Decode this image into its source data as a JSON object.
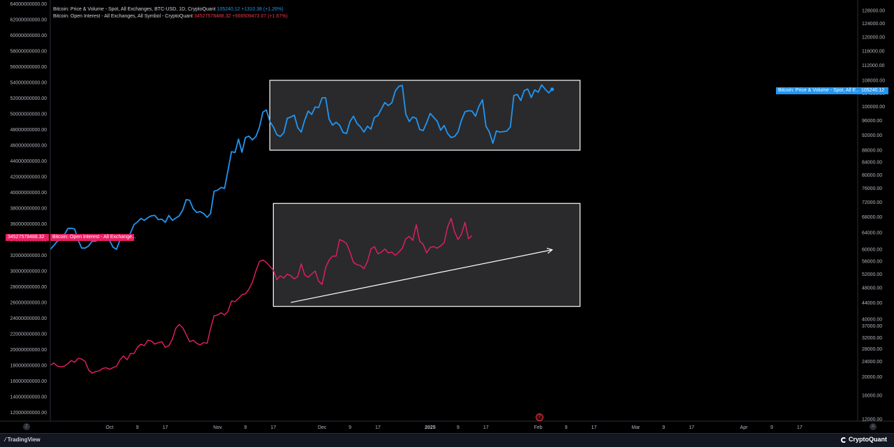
{
  "legend": {
    "btc_name": "Bitcoin: Price & Volume - Spot, All Exchanges, BTC-USD, 1D, CryptoQuant",
    "btc_value": "105240.12",
    "btc_change": "+1310.38 (+1.26%)",
    "oi_name": "Bitcoin: Open Interest - All Exchanges, All Symbol - CryptoQuant",
    "oi_value": "34527578488.32",
    "oi_change": "+566509473.07 (+1.67%)"
  },
  "tags": {
    "btc_label": "Bitcoin: Price & Volume - Spot, All E...",
    "btc_value": "105240.12",
    "oi_value": "34527578488.32",
    "oi_label": "Bitcoin: Open Interest - All Exchange..."
  },
  "bottom": {
    "tradingview": "TradingView",
    "cryptoquant": "CryptoQuant",
    "left_button": "Z",
    "right_button": "A",
    "marker": "?"
  },
  "colors": {
    "background": "#000000",
    "price_line": "#2196f3",
    "oi_line": "#e91e63",
    "box_fill": "#2a2a2c",
    "box_border": "#ffffff"
  },
  "chart_data": {
    "type": "line",
    "left_axis": {
      "ticks": [
        "64000000000.00",
        "62000000000.00",
        "60000000000.00",
        "58000000000.00",
        "56000000000.00",
        "54000000000.00",
        "52000000000.00",
        "50000000000.00",
        "48000000000.00",
        "46000000000.00",
        "44000000000.00",
        "42000000000.00",
        "40000000000.00",
        "38000000000.00",
        "36000000000.00",
        "34000000000.00",
        "32000000000.00",
        "30000000000.00",
        "28000000000.00",
        "26000000000.00",
        "24000000000.00",
        "22000000000.00",
        "20000000000.00",
        "18000000000.00",
        "16000000000.00",
        "14000000000.00",
        "12000000000.00"
      ],
      "ylim": [
        10900000000,
        64300000000
      ]
    },
    "right_axis": {
      "ticks": [
        "128000.00",
        "124000.00",
        "120000.00",
        "116000.00",
        "112000.00",
        "108000.00",
        "104000.00",
        "100000.00",
        "96000.00",
        "92000.00",
        "88000.00",
        "84000.00",
        "80000.00",
        "76000.00",
        "72000.00",
        "68000.00",
        "64000.00",
        "60000.00",
        "56000.00",
        "52000.00",
        "48000.00",
        "44000.00",
        "40000.00",
        "37000.00",
        "32000.00",
        "28000.00",
        "24000.00",
        "20000.00",
        "16000.00",
        "12000.00"
      ],
      "scale": "log"
    },
    "x_axis": {
      "ticks": [
        {
          "label": "Oct",
          "index": 17,
          "bold": false
        },
        {
          "label": "9",
          "index": 25,
          "bold": false
        },
        {
          "label": "17",
          "index": 33,
          "bold": false
        },
        {
          "label": "Nov",
          "index": 48,
          "bold": false
        },
        {
          "label": "9",
          "index": 56,
          "bold": false
        },
        {
          "label": "17",
          "index": 64,
          "bold": false
        },
        {
          "label": "Dec",
          "index": 78,
          "bold": false
        },
        {
          "label": "9",
          "index": 86,
          "bold": false
        },
        {
          "label": "17",
          "index": 94,
          "bold": false
        },
        {
          "label": "2025",
          "index": 109,
          "bold": true
        },
        {
          "label": "9",
          "index": 117,
          "bold": false
        },
        {
          "label": "17",
          "index": 125,
          "bold": false
        },
        {
          "label": "Feb",
          "index": 140,
          "bold": false
        },
        {
          "label": "9",
          "index": 148,
          "bold": false
        },
        {
          "label": "17",
          "index": 156,
          "bold": false
        },
        {
          "label": "Mar",
          "index": 168,
          "bold": false
        },
        {
          "label": "9",
          "index": 176,
          "bold": false
        },
        {
          "label": "17",
          "index": 184,
          "bold": false
        },
        {
          "label": "Apr",
          "index": 199,
          "bold": false
        },
        {
          "label": "9",
          "index": 207,
          "bold": false
        },
        {
          "label": "17",
          "index": 215,
          "bold": false
        }
      ]
    },
    "series": [
      {
        "name": "Bitcoin: Price & Volume - Spot, All Exchanges, BTC-USD, 1D, CryptoQuant",
        "axis": "right",
        "values": [
          60000,
          60900,
          61900,
          62300,
          63400,
          65000,
          65100,
          64900,
          62200,
          60300,
          60300,
          60800,
          61900,
          61900,
          62400,
          63600,
          63000,
          62100,
          60500,
          60000,
          62200,
          62700,
          62300,
          63900,
          66000,
          66700,
          67600,
          67100,
          67800,
          68300,
          68400,
          67300,
          67400,
          66600,
          68400,
          67100,
          67700,
          68300,
          69800,
          72700,
          72500,
          70200,
          69200,
          69400,
          68900,
          67900,
          68900,
          75100,
          75400,
          76200,
          75900,
          81500,
          87500,
          87200,
          90900,
          87300,
          91300,
          91700,
          90700,
          91600,
          94100,
          98400,
          99000,
          95700,
          94200,
          92100,
          91600,
          92600,
          96600,
          97000,
          97500,
          94000,
          92800,
          96100,
          98700,
          97700,
          99900,
          99700,
          102600,
          102600,
          96400,
          94700,
          95500,
          94700,
          92700,
          92400,
          95700,
          97200,
          95200,
          94200,
          92800,
          94400,
          93600,
          96900,
          97400,
          99300,
          101200,
          100300,
          101100,
          104700,
          106100,
          106400,
          97800,
          95700,
          97000,
          96600,
          93500,
          93200,
          95400,
          98000,
          96900,
          95800,
          93300,
          94600,
          92400,
          91300,
          91600,
          92800,
          96100,
          98500,
          98800,
          98700,
          97200,
          100100,
          102000,
          94400,
          92800,
          89800,
          93100,
          92800,
          92900,
          93100,
          94200,
          103300,
          103600,
          101800,
          104800,
          105300,
          102700,
          105000,
          104300,
          106600,
          105200,
          104100,
          105200
        ]
      },
      {
        "name": "Bitcoin: Open Interest - All Exchanges, All Symbol - CryptoQuant",
        "axis": "left",
        "values": [
          18000000000,
          18300000000,
          17900000000,
          17800000000,
          17900000000,
          18200000000,
          18600000000,
          18400000000,
          18900000000,
          18800000000,
          18500000000,
          17400000000,
          17000000000,
          17200000000,
          17300000000,
          17600000000,
          17700000000,
          17500000000,
          17700000000,
          17900000000,
          18700000000,
          19200000000,
          18700000000,
          19500000000,
          19500000000,
          20300000000,
          20700000000,
          20500000000,
          21200000000,
          21100000000,
          20700000000,
          20900000000,
          21000000000,
          20300000000,
          20500000000,
          21300000000,
          22700000000,
          23200000000,
          22800000000,
          21900000000,
          21000000000,
          21200000000,
          20800000000,
          20600000000,
          20900000000,
          20800000000,
          22700000000,
          24300000000,
          24400000000,
          24700000000,
          24400000000,
          24900000000,
          26200000000,
          26100000000,
          26500000000,
          27000000000,
          27100000000,
          27700000000,
          28600000000,
          30000000000,
          31200000000,
          31400000000,
          31100000000,
          30600000000,
          30100000000,
          28900000000,
          29400000000,
          29100000000,
          29600000000,
          29400000000,
          29000000000,
          29300000000,
          30900000000,
          29500000000,
          29200000000,
          29600000000,
          30000000000,
          28700000000,
          28300000000,
          30400000000,
          31400000000,
          31900000000,
          31900000000,
          34000000000,
          33800000000,
          33500000000,
          32400000000,
          31100000000,
          30800000000,
          30700000000,
          30300000000,
          31200000000,
          32800000000,
          33100000000,
          32200000000,
          32400000000,
          32800000000,
          32300000000,
          32400000000,
          32000000000,
          32400000000,
          32900000000,
          34100000000,
          34400000000,
          33900000000,
          35900000000,
          33800000000,
          33400000000,
          32300000000,
          33000000000,
          33100000000,
          32900000000,
          33200000000,
          33600000000,
          35600000000,
          36700000000,
          35000000000,
          34000000000,
          34700000000,
          36200000000,
          34100000000,
          34500000000
        ]
      }
    ],
    "annotations": {
      "price_box": {
        "index_start": 63,
        "index_end": 152,
        "value_start": 88000,
        "value_end": 108000,
        "axis": "right"
      },
      "oi_box": {
        "index_start": 64,
        "index_end": 152,
        "value_start": 25500000000,
        "value_end": 38600000000,
        "axis": "left"
      },
      "trend_arrow": {
        "index_start": 69,
        "index_end": 144,
        "value_start": 26000000000,
        "value_end": 32700000000,
        "axis": "left"
      }
    }
  }
}
